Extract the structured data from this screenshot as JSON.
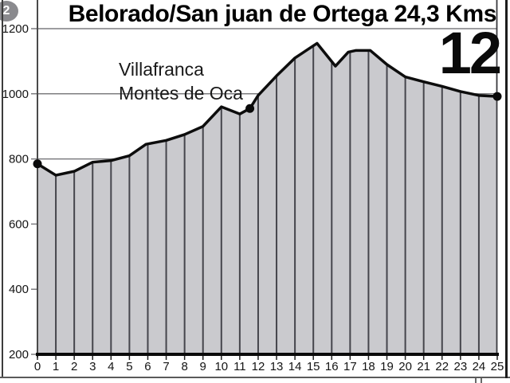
{
  "page": {
    "badge_label": "2",
    "stage_number": "12"
  },
  "chart_data": {
    "type": "area",
    "title": "Belorado/San juan de Ortega 24,3 Kms",
    "xlabel": "",
    "ylabel": "",
    "x_unit": "km",
    "y_unit": "m",
    "xlim": [
      0,
      25
    ],
    "ylim": [
      200,
      1200
    ],
    "x_ticks": [
      0,
      1,
      2,
      3,
      4,
      5,
      6,
      7,
      8,
      9,
      10,
      11,
      12,
      13,
      14,
      15,
      16,
      17,
      18,
      19,
      20,
      21,
      22,
      23,
      24,
      25
    ],
    "y_ticks": [
      200,
      400,
      600,
      800,
      1000,
      1200
    ],
    "grid": "horizontal gridlines every 200 m; vertical separator line at each km inside the shaded profile",
    "legend": "none",
    "profile_km_elevation": [
      [
        0,
        785
      ],
      [
        1,
        750
      ],
      [
        2,
        762
      ],
      [
        3,
        790
      ],
      [
        4,
        795
      ],
      [
        5,
        810
      ],
      [
        5.9,
        845
      ],
      [
        7,
        857
      ],
      [
        8,
        875
      ],
      [
        9,
        900
      ],
      [
        10,
        960
      ],
      [
        11,
        938
      ],
      [
        11.55,
        955
      ],
      [
        12,
        995
      ],
      [
        13,
        1055
      ],
      [
        14,
        1110
      ],
      [
        15.2,
        1155
      ],
      [
        16.2,
        1085
      ],
      [
        16.9,
        1128
      ],
      [
        17.3,
        1133
      ],
      [
        18.1,
        1133
      ],
      [
        19,
        1090
      ],
      [
        20,
        1052
      ],
      [
        21,
        1037
      ],
      [
        22,
        1023
      ],
      [
        23,
        1007
      ],
      [
        24,
        995
      ],
      [
        25,
        992
      ]
    ],
    "markers": [
      {
        "km": 0,
        "elevation": 785
      },
      {
        "km": 11.55,
        "elevation": 955
      },
      {
        "km": 25,
        "elevation": 992
      }
    ],
    "annotations": [
      {
        "line1": "Villafranca",
        "line2": "Montes de Oca",
        "near_km": 11.55
      }
    ],
    "colors": {
      "fill": "#cacace",
      "line": "#0d0d0d",
      "grid": "#7d7d80",
      "km_line": "#45454c",
      "marker": "#0a0a0a",
      "axis": "#4a4a4a",
      "badge_bg": "#8a8a8e"
    }
  }
}
